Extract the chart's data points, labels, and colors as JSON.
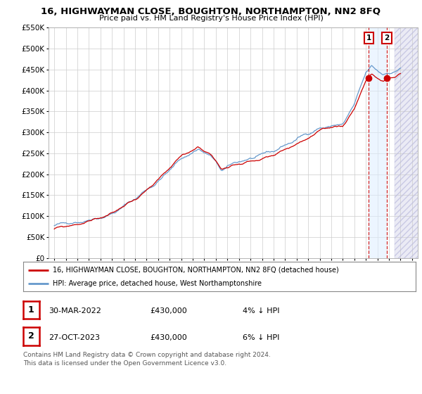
{
  "title": "16, HIGHWAYMAN CLOSE, BOUGHTON, NORTHAMPTON, NN2 8FQ",
  "subtitle": "Price paid vs. HM Land Registry's House Price Index (HPI)",
  "legend_line1": "16, HIGHWAYMAN CLOSE, BOUGHTON, NORTHAMPTON, NN2 8FQ (detached house)",
  "legend_line2": "HPI: Average price, detached house, West Northamptonshire",
  "footnote": "Contains HM Land Registry data © Crown copyright and database right 2024.\nThis data is licensed under the Open Government Licence v3.0.",
  "table_rows": [
    {
      "num": "1",
      "date": "30-MAR-2022",
      "price": "£430,000",
      "note": "4% ↓ HPI"
    },
    {
      "num": "2",
      "date": "27-OCT-2023",
      "price": "£430,000",
      "note": "6% ↓ HPI"
    }
  ],
  "sale1_x": 2022.25,
  "sale2_x": 2023.82,
  "sale1_y": 430000,
  "sale2_y": 430000,
  "ylim": [
    0,
    550000
  ],
  "xlim_start": 1994.5,
  "xlim_end": 2026.5,
  "hatch_start": 2024.5,
  "shade_start": 2022.25,
  "shade_end": 2023.82,
  "red_line_color": "#cc0000",
  "blue_line_color": "#6699cc",
  "background_color": "#ffffff",
  "grid_color": "#cccccc",
  "shade_color": "#ddeeff",
  "hatch_color": "#aaaacc"
}
